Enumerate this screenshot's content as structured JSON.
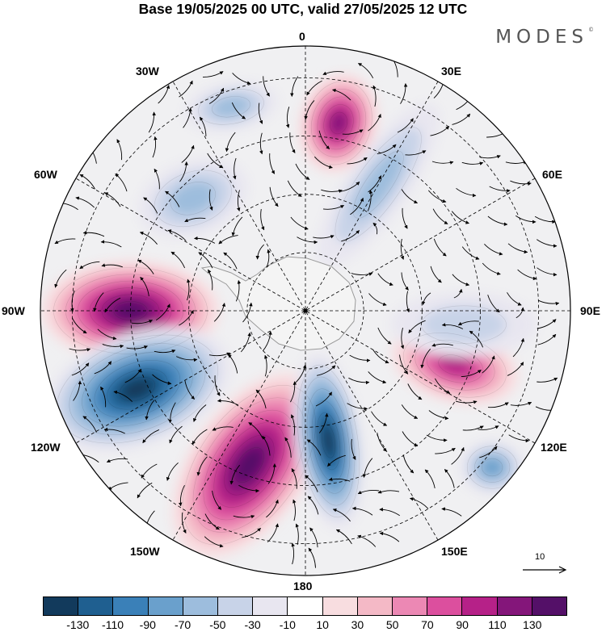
{
  "title": "Base 19/05/2025 00 UTC, valid 27/05/2025 12 UTC",
  "logo": "MODES",
  "logo_mark": "©",
  "longitude_labels": {
    "lon_0": "0",
    "lon_30e": "30E",
    "lon_60e": "60E",
    "lon_90e": "90E",
    "lon_120e": "120E",
    "lon_150e": "150E",
    "lon_180": "180",
    "lon_150w": "150W",
    "lon_120w": "120W",
    "lon_90w": "90W",
    "lon_60w": "60W",
    "lon_30w": "30W"
  },
  "reference_vector": {
    "value": "10"
  },
  "colorbar": {
    "colors": [
      "#123a5c",
      "#1f5f90",
      "#3a80b8",
      "#6aa0cc",
      "#9dbddd",
      "#c8d3e8",
      "#e8e6f0",
      "#ffffff",
      "#f8dde0",
      "#f4b9c6",
      "#ec88b4",
      "#dc4f9e",
      "#b62188",
      "#84167a",
      "#541068"
    ],
    "ticks": [
      "-130",
      "-110",
      "-90",
      "-70",
      "-50",
      "-30",
      "-10",
      "10",
      "30",
      "50",
      "70",
      "90",
      "110",
      "130"
    ]
  },
  "anomaly_centers": [
    {
      "lon": "10E",
      "sign": "positive",
      "peak": 110
    },
    {
      "lon": "30E",
      "sign": "negative",
      "peak": -50
    },
    {
      "lon": "45W",
      "sign": "negative",
      "peak": -50
    },
    {
      "lon": "20W",
      "sign": "negative",
      "peak": -50
    },
    {
      "lon": "90W",
      "sign": "positive",
      "peak": 130
    },
    {
      "lon": "115W",
      "sign": "negative",
      "peak": -130
    },
    {
      "lon": "160W",
      "sign": "positive",
      "peak": 130
    },
    {
      "lon": "170E",
      "sign": "negative",
      "peak": -130
    },
    {
      "lon": "110E",
      "sign": "positive",
      "peak": 90
    },
    {
      "lon": "95E",
      "sign": "negative",
      "peak": -30
    },
    {
      "lon": "130E",
      "sign": "negative",
      "peak": -70
    }
  ]
}
